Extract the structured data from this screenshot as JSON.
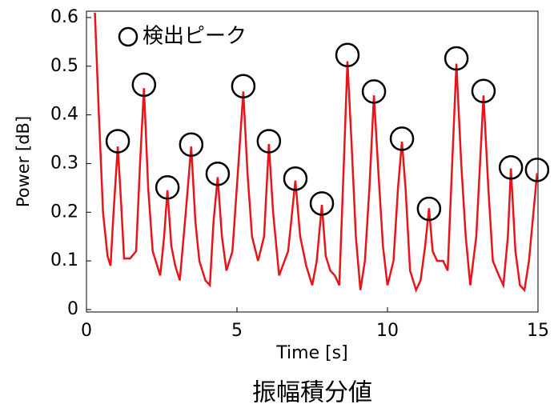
{
  "chart_data": {
    "type": "line",
    "xlabel": "Time [s]",
    "ylabel": "Power [dB]",
    "caption": "振幅積分値",
    "xlim": [
      0,
      15
    ],
    "ylim": [
      -0.005,
      0.613
    ],
    "xticks": [
      0,
      5,
      10,
      15
    ],
    "yticks": [
      0,
      0.1,
      0.2,
      0.3,
      0.4,
      0.5,
      0.6
    ],
    "legend": "upper left",
    "series": [
      {
        "color": "#e8141a",
        "style": "line",
        "x": [
          0.28,
          0.4,
          0.55,
          0.7,
          0.8,
          0.9,
          1.04,
          1.15,
          1.25,
          1.45,
          1.65,
          1.78,
          1.91,
          2.05,
          2.2,
          2.45,
          2.58,
          2.69,
          2.82,
          2.95,
          3.1,
          3.3,
          3.48,
          3.62,
          3.75,
          3.95,
          4.1,
          4.22,
          4.36,
          4.5,
          4.65,
          4.85,
          5.05,
          5.21,
          5.35,
          5.5,
          5.7,
          5.9,
          6.06,
          6.2,
          6.4,
          6.7,
          6.94,
          7.1,
          7.3,
          7.5,
          7.65,
          7.82,
          7.95,
          8.1,
          8.25,
          8.4,
          8.55,
          8.67,
          8.8,
          8.95,
          9.1,
          9.25,
          9.4,
          9.55,
          9.7,
          9.85,
          10.0,
          10.2,
          10.35,
          10.48,
          10.6,
          10.75,
          10.95,
          11.1,
          11.25,
          11.38,
          11.5,
          11.65,
          11.85,
          12.0,
          12.15,
          12.29,
          12.45,
          12.6,
          12.75,
          12.95,
          13.19,
          13.35,
          13.5,
          13.7,
          13.85,
          14.0,
          14.1,
          14.25,
          14.4,
          14.55,
          14.7,
          14.85,
          14.97,
          15.0
        ],
        "values": [
          0.61,
          0.42,
          0.2,
          0.11,
          0.09,
          0.2,
          0.335,
          0.22,
          0.105,
          0.105,
          0.12,
          0.3,
          0.455,
          0.25,
          0.12,
          0.07,
          0.15,
          0.245,
          0.13,
          0.09,
          0.06,
          0.2,
          0.335,
          0.18,
          0.1,
          0.06,
          0.05,
          0.18,
          0.272,
          0.15,
          0.08,
          0.12,
          0.3,
          0.448,
          0.28,
          0.15,
          0.1,
          0.15,
          0.34,
          0.2,
          0.07,
          0.12,
          0.265,
          0.15,
          0.09,
          0.05,
          0.1,
          0.215,
          0.11,
          0.08,
          0.07,
          0.05,
          0.3,
          0.51,
          0.35,
          0.15,
          0.04,
          0.1,
          0.25,
          0.44,
          0.28,
          0.13,
          0.05,
          0.1,
          0.25,
          0.345,
          0.25,
          0.08,
          0.04,
          0.06,
          0.13,
          0.208,
          0.12,
          0.1,
          0.1,
          0.08,
          0.3,
          0.505,
          0.3,
          0.15,
          0.05,
          0.15,
          0.44,
          0.25,
          0.1,
          0.07,
          0.05,
          0.15,
          0.29,
          0.12,
          0.05,
          0.04,
          0.1,
          0.2,
          0.28,
          0.275
        ]
      },
      {
        "name": "検出ピーク",
        "color": "#000000",
        "style": "markers",
        "x": [
          1.04,
          1.91,
          2.69,
          3.48,
          4.36,
          5.21,
          6.06,
          6.94,
          7.82,
          8.67,
          9.55,
          10.48,
          11.38,
          12.29,
          13.19,
          14.1,
          14.97
        ],
        "values": [
          0.346,
          0.462,
          0.251,
          0.339,
          0.279,
          0.459,
          0.346,
          0.269,
          0.218,
          0.523,
          0.448,
          0.351,
          0.207,
          0.516,
          0.449,
          0.292,
          0.287
        ]
      }
    ]
  }
}
